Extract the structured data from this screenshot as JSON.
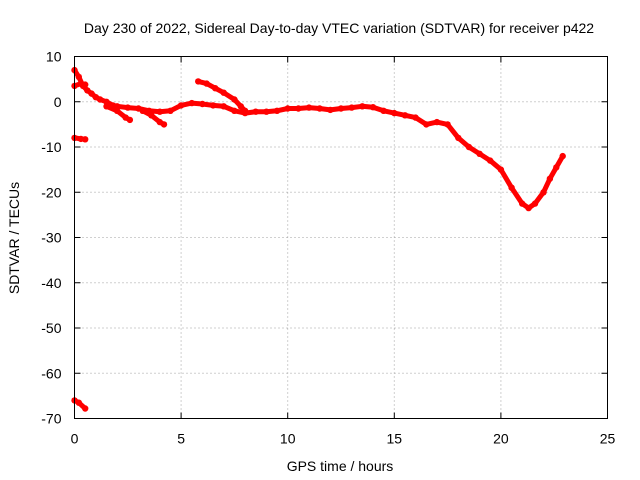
{
  "chart_data": {
    "type": "scatter",
    "title": "Day 230 of 2022, Sidereal Day-to-day VTEC variation (SDTVAR) for receiver p422",
    "xlabel": "GPS time / hours",
    "ylabel": "SDTVAR / TECUs",
    "xlim": [
      0,
      25
    ],
    "ylim": [
      -70,
      10
    ],
    "xticks": [
      0,
      5,
      10,
      15,
      20,
      25
    ],
    "yticks": [
      -70,
      -60,
      -50,
      -40,
      -30,
      -20,
      -10,
      0,
      10
    ],
    "grid": true,
    "legend": "none",
    "color": "#ff0000",
    "series": [
      {
        "name": "main-track",
        "points": [
          [
            0.0,
            7.0
          ],
          [
            0.2,
            5.5
          ],
          [
            0.4,
            3.5
          ],
          [
            0.6,
            2.5
          ],
          [
            0.8,
            1.8
          ],
          [
            1.0,
            1.0
          ],
          [
            1.2,
            0.5
          ],
          [
            1.5,
            0.0
          ],
          [
            1.8,
            -0.8
          ],
          [
            2.0,
            -1.0
          ],
          [
            2.5,
            -1.3
          ],
          [
            3.0,
            -1.5
          ],
          [
            3.5,
            -2.0
          ],
          [
            4.0,
            -2.2
          ],
          [
            4.5,
            -2.0
          ],
          [
            5.0,
            -0.8
          ],
          [
            5.5,
            -0.3
          ],
          [
            6.0,
            -0.5
          ],
          [
            6.5,
            -0.8
          ],
          [
            7.0,
            -1.0
          ],
          [
            7.5,
            -2.0
          ],
          [
            8.0,
            -2.5
          ],
          [
            8.5,
            -2.2
          ],
          [
            9.0,
            -2.2
          ],
          [
            9.5,
            -2.0
          ],
          [
            10.0,
            -1.5
          ],
          [
            10.5,
            -1.5
          ],
          [
            11.0,
            -1.3
          ],
          [
            11.5,
            -1.5
          ],
          [
            12.0,
            -1.8
          ],
          [
            12.5,
            -1.5
          ],
          [
            13.0,
            -1.3
          ],
          [
            13.5,
            -1.0
          ],
          [
            14.0,
            -1.2
          ],
          [
            14.5,
            -2.0
          ],
          [
            15.0,
            -2.5
          ],
          [
            15.5,
            -3.0
          ],
          [
            16.0,
            -3.5
          ],
          [
            16.5,
            -5.0
          ],
          [
            17.0,
            -4.5
          ],
          [
            17.5,
            -5.0
          ],
          [
            18.0,
            -8.0
          ],
          [
            18.5,
            -10.0
          ],
          [
            19.0,
            -11.5
          ],
          [
            19.5,
            -13.0
          ],
          [
            20.0,
            -15.0
          ],
          [
            20.5,
            -19.0
          ],
          [
            21.0,
            -22.5
          ],
          [
            21.3,
            -23.5
          ],
          [
            21.6,
            -22.5
          ],
          [
            22.0,
            -20.0
          ],
          [
            22.3,
            -17.0
          ],
          [
            22.6,
            -14.5
          ],
          [
            22.9,
            -12.0
          ]
        ]
      },
      {
        "name": "upper-segment",
        "points": [
          [
            5.8,
            4.5
          ],
          [
            6.2,
            4.0
          ],
          [
            6.6,
            3.0
          ],
          [
            7.0,
            2.0
          ],
          [
            7.5,
            0.5
          ],
          [
            7.8,
            -1.0
          ],
          [
            8.0,
            -2.0
          ]
        ]
      },
      {
        "name": "lower-dip",
        "points": [
          [
            1.5,
            -1.0
          ],
          [
            2.0,
            -2.0
          ],
          [
            2.4,
            -3.5
          ],
          [
            2.6,
            -4.0
          ]
        ]
      },
      {
        "name": "mid-dip",
        "points": [
          [
            3.2,
            -2.0
          ],
          [
            3.6,
            -3.0
          ],
          [
            4.0,
            -4.5
          ],
          [
            4.2,
            -5.0
          ]
        ]
      },
      {
        "name": "early-branch",
        "points": [
          [
            0.0,
            3.5
          ],
          [
            0.3,
            4.0
          ],
          [
            0.5,
            3.8
          ]
        ]
      },
      {
        "name": "outlier-segment-upper",
        "points": [
          [
            0.0,
            -8.0
          ],
          [
            0.3,
            -8.2
          ],
          [
            0.5,
            -8.3
          ]
        ]
      },
      {
        "name": "outlier-segment-lower",
        "points": [
          [
            0.0,
            -66.0
          ],
          [
            0.2,
            -66.5
          ],
          [
            0.5,
            -67.8
          ]
        ]
      }
    ]
  }
}
